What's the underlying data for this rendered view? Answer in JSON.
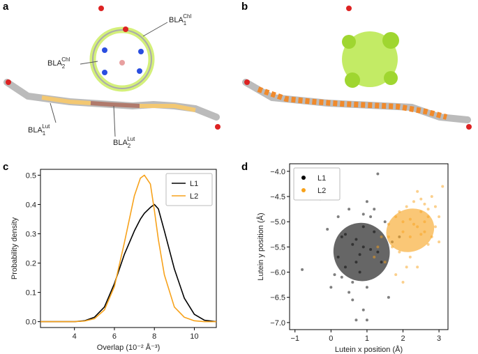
{
  "panel_labels": [
    "a",
    "b",
    "c",
    "d"
  ],
  "molecule_labels": [
    {
      "base": "BLA",
      "sub": "1",
      "sup": "Chl"
    },
    {
      "base": "BLA",
      "sub": "2",
      "sup": "Chl"
    },
    {
      "base": "BLA",
      "sub": "1",
      "sup": "Lut"
    },
    {
      "base": "BLA",
      "sub": "2",
      "sup": "Lut"
    }
  ],
  "chart_data": [
    {
      "type": "line",
      "xlabel": "Overlap (10⁻² Å⁻³)",
      "ylabel": "Probability density",
      "x": [
        2.3,
        4,
        4.5,
        5,
        5.5,
        6,
        6.5,
        7,
        7.3,
        7.5,
        7.8,
        8,
        8.2,
        8.5,
        9,
        9.5,
        10,
        10.5,
        11.1
      ],
      "series": [
        {
          "name": "L1",
          "color": "#000000",
          "values": [
            0,
            0,
            0.003,
            0.015,
            0.05,
            0.13,
            0.23,
            0.31,
            0.35,
            0.37,
            0.39,
            0.4,
            0.385,
            0.31,
            0.18,
            0.08,
            0.025,
            0.005,
            0
          ]
        },
        {
          "name": "L2",
          "color": "#f7a21b",
          "values": [
            0,
            0,
            0.002,
            0.01,
            0.04,
            0.12,
            0.27,
            0.43,
            0.49,
            0.5,
            0.47,
            0.38,
            0.28,
            0.16,
            0.05,
            0.015,
            0.003,
            0,
            0
          ]
        }
      ],
      "xlim": [
        2.3,
        11.1
      ],
      "xticks": [
        4,
        6,
        8,
        10
      ],
      "ylim": [
        -0.02,
        0.52
      ],
      "yticks": [
        {
          "value": 0,
          "label": "0.0"
        },
        0.1,
        0.2,
        0.3,
        0.4,
        0.5
      ],
      "legend": "upper right"
    },
    {
      "type": "scatter",
      "xlabel": "Lutein x position (Å)",
      "ylabel": "Lutein y position (Å)",
      "series": [
        {
          "name": "L1",
          "color": "#000000",
          "x": [
            -0.8,
            -0.3,
            0.1,
            0.0,
            0.3,
            0.5,
            0.6,
            0.7,
            0.9,
            1.0,
            1.2,
            1.3,
            1.5,
            0.2,
            0.4,
            0.8,
            1.1,
            0.6,
            0.9,
            1.4,
            0.3,
            0.7,
            1.0,
            1.2,
            0.5,
            1.7,
            0.8,
            0.9,
            0.1,
            -0.1,
            1.6,
            0.4,
            1.3,
            0.2,
            0.7,
            1.1,
            0.6,
            1.9,
            0.9,
            1.0
          ],
          "y": [
            -5.95,
            -4.55,
            -4.35,
            -6.3,
            -5.3,
            -4.75,
            -6.55,
            -6.95,
            -5.1,
            -4.6,
            -4.75,
            -4.05,
            -5.0,
            -5.7,
            -5.9,
            -6.0,
            -5.55,
            -5.45,
            -6.75,
            -5.8,
            -6.1,
            -5.35,
            -6.3,
            -5.2,
            -6.4,
            -5.4,
            -5.65,
            -4.85,
            -6.05,
            -5.15,
            -6.5,
            -5.25,
            -5.6,
            -4.9,
            -5.8,
            -4.9,
            -6.2,
            -5.3,
            -5.5,
            -6.95
          ],
          "ellipse": {
            "cx": 0.85,
            "cy": -5.6,
            "rx": 0.78,
            "ry": 0.58,
            "angle": -15
          }
        },
        {
          "name": "L2",
          "color": "#f7a21b",
          "x": [
            1.6,
            1.8,
            1.9,
            2.0,
            2.1,
            2.2,
            2.3,
            2.4,
            2.5,
            2.6,
            2.7,
            2.8,
            2.9,
            3.0,
            3.1,
            1.5,
            1.7,
            2.0,
            2.2,
            2.4,
            2.6,
            2.8,
            1.9,
            2.1,
            2.3,
            2.5,
            2.7,
            1.4,
            1.2,
            1.8,
            2.0,
            2.4,
            2.6,
            2.9,
            3.0,
            2.2,
            1.6,
            1.3,
            2.5,
            2.7
          ],
          "y": [
            -5.3,
            -4.9,
            -5.6,
            -5.0,
            -4.7,
            -5.3,
            -4.6,
            -5.1,
            -4.8,
            -5.2,
            -4.9,
            -4.5,
            -4.7,
            -4.9,
            -4.3,
            -5.8,
            -5.5,
            -5.2,
            -5.7,
            -4.4,
            -5.0,
            -5.3,
            -4.8,
            -5.9,
            -5.05,
            -4.55,
            -5.45,
            -5.3,
            -5.7,
            -6.05,
            -6.2,
            -5.9,
            -4.65,
            -5.1,
            -5.4,
            -4.95,
            -5.05,
            -5.5,
            -5.25,
            -4.75
          ],
          "ellipse": {
            "cx": 2.2,
            "cy": -5.17,
            "rx": 0.68,
            "ry": 0.42,
            "angle": -25
          }
        }
      ],
      "xlim": [
        -1.15,
        3.25
      ],
      "xticks": [
        {
          "value": -1,
          "label": "−1"
        },
        0,
        1,
        2,
        3
      ],
      "ylim": [
        -7.14,
        -3.85
      ],
      "yticks": [
        {
          "value": -4.0,
          "label": "−4.0"
        },
        {
          "value": -4.5,
          "label": "−4.5"
        },
        {
          "value": -5.0,
          "label": "−5.0"
        },
        {
          "value": -5.5,
          "label": "−5.5"
        },
        {
          "value": -6.0,
          "label": "−6.0"
        },
        {
          "value": -6.5,
          "label": "−6.5"
        },
        {
          "value": -7.0,
          "label": "−7.0"
        }
      ],
      "legend": "upper left"
    }
  ]
}
